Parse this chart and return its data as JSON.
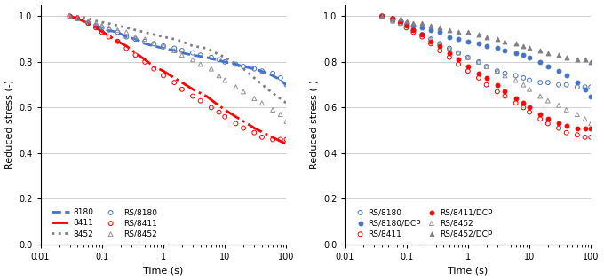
{
  "left": {
    "xlabel": "Time (s)",
    "ylabel": "Reduced stress (-)",
    "xlim": [
      0.01,
      100
    ],
    "ylim": [
      0,
      1.05
    ],
    "yticks": [
      0,
      0.2,
      0.4,
      0.6,
      0.8,
      1.0
    ],
    "lines": {
      "8180": {
        "color": "#4472C4",
        "linestyle": "--",
        "linewidth": 2.0,
        "x": [
          0.03,
          0.04,
          0.06,
          0.08,
          0.12,
          0.18,
          0.25,
          0.35,
          0.5,
          0.7,
          1.0,
          1.5,
          2.0,
          3.0,
          5.0,
          7.0,
          10,
          15,
          20,
          30,
          50,
          70,
          100
        ],
        "y": [
          1.0,
          0.99,
          0.97,
          0.96,
          0.94,
          0.93,
          0.91,
          0.9,
          0.88,
          0.87,
          0.86,
          0.85,
          0.84,
          0.83,
          0.82,
          0.81,
          0.8,
          0.79,
          0.78,
          0.77,
          0.75,
          0.73,
          0.7
        ]
      },
      "8411": {
        "color": "#FF0000",
        "linestyle": "-.",
        "linewidth": 2.0,
        "x": [
          0.03,
          0.04,
          0.06,
          0.08,
          0.12,
          0.18,
          0.25,
          0.35,
          0.5,
          0.7,
          1.0,
          1.5,
          2.0,
          3.0,
          5.0,
          7.0,
          10,
          15,
          20,
          30,
          50,
          70,
          100
        ],
        "y": [
          1.0,
          0.99,
          0.97,
          0.95,
          0.92,
          0.89,
          0.87,
          0.84,
          0.81,
          0.78,
          0.76,
          0.73,
          0.71,
          0.68,
          0.65,
          0.62,
          0.59,
          0.56,
          0.54,
          0.51,
          0.48,
          0.46,
          0.44
        ]
      },
      "8452": {
        "color": "#808080",
        "linestyle": ":",
        "linewidth": 2.0,
        "x": [
          0.03,
          0.04,
          0.06,
          0.08,
          0.12,
          0.18,
          0.25,
          0.35,
          0.5,
          0.7,
          1.0,
          1.5,
          2.0,
          3.0,
          5.0,
          7.0,
          10,
          15,
          20,
          30,
          50,
          70,
          100
        ],
        "y": [
          1.0,
          1.0,
          0.99,
          0.98,
          0.97,
          0.96,
          0.95,
          0.94,
          0.93,
          0.92,
          0.91,
          0.9,
          0.89,
          0.87,
          0.86,
          0.84,
          0.82,
          0.79,
          0.77,
          0.73,
          0.68,
          0.65,
          0.62
        ]
      }
    },
    "scatter": {
      "RS/8180": {
        "color": "#4472C4",
        "marker": "o",
        "filled": false,
        "x": [
          0.03,
          0.04,
          0.06,
          0.08,
          0.1,
          0.13,
          0.18,
          0.25,
          0.35,
          0.5,
          0.7,
          1.0,
          1.5,
          2.0,
          3.0,
          4.0,
          6.0,
          8.0,
          10,
          15,
          20,
          30,
          40,
          60,
          80,
          100
        ],
        "y": [
          1.0,
          0.99,
          0.97,
          0.96,
          0.95,
          0.94,
          0.93,
          0.91,
          0.9,
          0.89,
          0.88,
          0.87,
          0.86,
          0.85,
          0.84,
          0.83,
          0.82,
          0.81,
          0.8,
          0.79,
          0.78,
          0.77,
          0.76,
          0.75,
          0.73,
          0.7
        ]
      },
      "RS/8411": {
        "color": "#FF0000",
        "marker": "o",
        "filled": false,
        "x": [
          0.03,
          0.04,
          0.06,
          0.08,
          0.1,
          0.13,
          0.18,
          0.25,
          0.35,
          0.5,
          0.7,
          1.0,
          1.5,
          2.0,
          3.0,
          4.0,
          6.0,
          8.0,
          10,
          15,
          20,
          30,
          40,
          60,
          80,
          100
        ],
        "y": [
          1.0,
          0.99,
          0.97,
          0.95,
          0.93,
          0.91,
          0.89,
          0.86,
          0.83,
          0.8,
          0.77,
          0.74,
          0.71,
          0.68,
          0.65,
          0.63,
          0.6,
          0.58,
          0.56,
          0.53,
          0.51,
          0.49,
          0.47,
          0.46,
          0.46,
          0.46
        ]
      },
      "RS/8452": {
        "color": "#909090",
        "marker": "^",
        "filled": false,
        "x": [
          0.03,
          0.04,
          0.06,
          0.08,
          0.1,
          0.13,
          0.18,
          0.25,
          0.35,
          0.5,
          0.7,
          1.0,
          1.5,
          2.0,
          3.0,
          4.0,
          6.0,
          8.0,
          10,
          15,
          20,
          30,
          40,
          60,
          80,
          100
        ],
        "y": [
          1.0,
          0.99,
          0.98,
          0.97,
          0.96,
          0.95,
          0.94,
          0.93,
          0.91,
          0.9,
          0.88,
          0.87,
          0.85,
          0.83,
          0.81,
          0.79,
          0.77,
          0.74,
          0.72,
          0.69,
          0.67,
          0.64,
          0.62,
          0.59,
          0.57,
          0.54
        ]
      }
    }
  },
  "right": {
    "xlabel": "Time (s)",
    "ylabel": "Reduced stress (-)",
    "xlim": [
      0.01,
      100
    ],
    "ylim": [
      0,
      1.05
    ],
    "yticks": [
      0,
      0.2,
      0.4,
      0.6,
      0.8,
      1.0
    ],
    "scatter": {
      "RS/8180": {
        "color": "#4472C4",
        "marker": "o",
        "filled": false,
        "x": [
          0.04,
          0.06,
          0.08,
          0.1,
          0.13,
          0.18,
          0.25,
          0.35,
          0.5,
          0.7,
          1.0,
          1.5,
          2.0,
          3.0,
          4.0,
          6.0,
          8.0,
          10,
          15,
          20,
          30,
          40,
          60,
          80,
          100
        ],
        "y": [
          1.0,
          0.98,
          0.97,
          0.96,
          0.94,
          0.92,
          0.9,
          0.88,
          0.86,
          0.84,
          0.82,
          0.8,
          0.78,
          0.76,
          0.75,
          0.74,
          0.73,
          0.72,
          0.71,
          0.71,
          0.7,
          0.7,
          0.69,
          0.69,
          0.69
        ]
      },
      "RS/8411": {
        "color": "#FF0000",
        "marker": "o",
        "filled": false,
        "x": [
          0.04,
          0.06,
          0.08,
          0.1,
          0.13,
          0.18,
          0.25,
          0.35,
          0.5,
          0.7,
          1.0,
          1.5,
          2.0,
          3.0,
          4.0,
          6.0,
          8.0,
          10,
          15,
          20,
          30,
          40,
          60,
          80,
          100
        ],
        "y": [
          1.0,
          0.99,
          0.97,
          0.95,
          0.93,
          0.91,
          0.88,
          0.85,
          0.82,
          0.79,
          0.76,
          0.73,
          0.7,
          0.67,
          0.65,
          0.62,
          0.6,
          0.58,
          0.55,
          0.53,
          0.51,
          0.49,
          0.48,
          0.47,
          0.47
        ]
      },
      "RS/8452": {
        "color": "#909090",
        "marker": "^",
        "filled": false,
        "x": [
          0.04,
          0.06,
          0.08,
          0.1,
          0.13,
          0.18,
          0.25,
          0.35,
          0.5,
          0.7,
          1.0,
          1.5,
          2.0,
          3.0,
          4.0,
          6.0,
          8.0,
          10,
          15,
          20,
          30,
          40,
          60,
          80,
          100
        ],
        "y": [
          1.0,
          0.98,
          0.97,
          0.96,
          0.94,
          0.92,
          0.9,
          0.88,
          0.86,
          0.84,
          0.82,
          0.8,
          0.78,
          0.76,
          0.74,
          0.72,
          0.7,
          0.68,
          0.65,
          0.63,
          0.61,
          0.59,
          0.57,
          0.55,
          0.53
        ]
      },
      "RS/8180/DCP": {
        "color": "#4472C4",
        "marker": "o",
        "filled": true,
        "x": [
          0.04,
          0.06,
          0.08,
          0.1,
          0.13,
          0.18,
          0.25,
          0.35,
          0.5,
          0.7,
          1.0,
          1.5,
          2.0,
          3.0,
          4.0,
          6.0,
          8.0,
          10,
          15,
          20,
          30,
          40,
          60,
          80,
          100
        ],
        "y": [
          1.0,
          0.99,
          0.98,
          0.97,
          0.96,
          0.95,
          0.94,
          0.93,
          0.91,
          0.9,
          0.89,
          0.88,
          0.87,
          0.86,
          0.85,
          0.84,
          0.83,
          0.82,
          0.8,
          0.78,
          0.76,
          0.74,
          0.71,
          0.68,
          0.65
        ]
      },
      "RS/8411/DCP": {
        "color": "#FF0000",
        "marker": "o",
        "filled": true,
        "x": [
          0.04,
          0.06,
          0.08,
          0.1,
          0.13,
          0.18,
          0.25,
          0.35,
          0.5,
          0.7,
          1.0,
          1.5,
          2.0,
          3.0,
          4.0,
          6.0,
          8.0,
          10,
          15,
          20,
          30,
          40,
          60,
          80,
          100
        ],
        "y": [
          1.0,
          0.99,
          0.98,
          0.96,
          0.94,
          0.92,
          0.89,
          0.87,
          0.84,
          0.81,
          0.78,
          0.75,
          0.73,
          0.7,
          0.67,
          0.64,
          0.62,
          0.6,
          0.57,
          0.55,
          0.53,
          0.52,
          0.51,
          0.51,
          0.51
        ]
      },
      "RS/8452/DCP": {
        "color": "#808080",
        "marker": "^",
        "filled": true,
        "x": [
          0.04,
          0.06,
          0.08,
          0.1,
          0.13,
          0.18,
          0.25,
          0.35,
          0.5,
          0.7,
          1.0,
          1.5,
          2.0,
          3.0,
          4.0,
          6.0,
          8.0,
          10,
          15,
          20,
          30,
          40,
          60,
          80,
          100
        ],
        "y": [
          1.0,
          0.99,
          0.99,
          0.98,
          0.97,
          0.97,
          0.96,
          0.95,
          0.94,
          0.93,
          0.93,
          0.92,
          0.91,
          0.9,
          0.89,
          0.88,
          0.87,
          0.86,
          0.85,
          0.84,
          0.83,
          0.82,
          0.81,
          0.81,
          0.8
        ]
      }
    }
  },
  "bg_color": "#ffffff",
  "grid_color": "#c8c8c8",
  "font_size": 8,
  "marker_size": 3.5,
  "marker_lw": 0.7
}
